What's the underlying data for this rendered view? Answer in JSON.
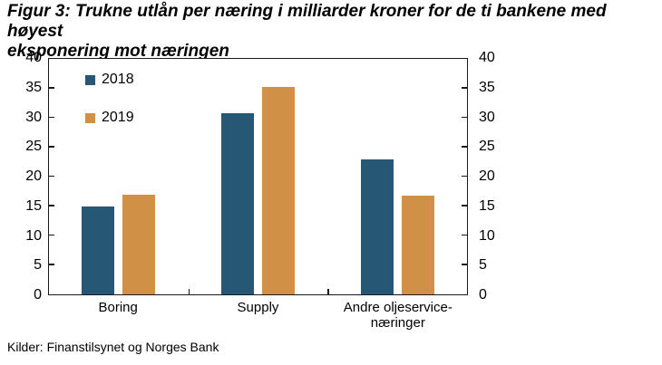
{
  "title": "Figur 3: Trukne utlån per næring i milliarder kroner for de ti bankene med høyest\neksponering mot næringen",
  "source": "Kilder: Finanstilsynet og Norges Bank",
  "chart_data": {
    "type": "bar",
    "title": "Trukne utlån per næring i milliarder kroner for de ti bankene med høyest eksponering mot næringen",
    "categories": [
      "Boring",
      "Supply",
      "Andre oljeservice-\nnæringer"
    ],
    "series": [
      {
        "name": "2018",
        "color": "#265876",
        "values": [
          15,
          30.8,
          23
        ]
      },
      {
        "name": "2019",
        "color": "#D09045",
        "values": [
          17,
          35.3,
          16.7
        ]
      }
    ],
    "xlabel": "",
    "ylabel": "",
    "ylim": [
      0,
      40
    ],
    "yticks": [
      0,
      5,
      10,
      15,
      20,
      25,
      30,
      35,
      40
    ],
    "grid": false,
    "legend_position": "top-left-inside",
    "axes": "y-axis shown on both left and right sides"
  }
}
